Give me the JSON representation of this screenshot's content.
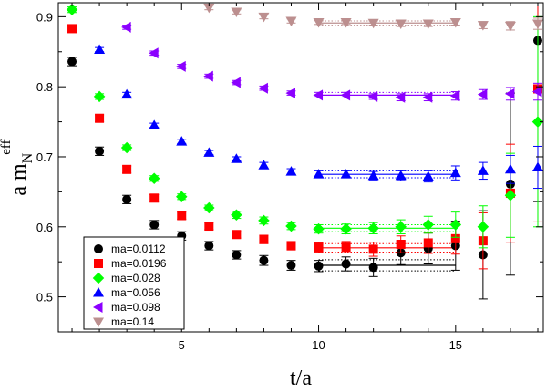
{
  "chart_data": {
    "type": "scatter",
    "xlabel": "t/a",
    "ylabel_main": "a m",
    "ylabel_sub": "N",
    "ylabel_sup": "eff",
    "xlim": [
      0.5,
      18.2
    ],
    "ylim": [
      0.45,
      0.92
    ],
    "xticks": [
      5,
      10,
      15
    ],
    "yticks": [
      0.5,
      0.6,
      0.7,
      0.8,
      0.9
    ],
    "xtick_labels": [
      "5",
      "10",
      "15"
    ],
    "ytick_labels": [
      "0.5",
      "0.6",
      "0.7",
      "0.8",
      "0.9"
    ],
    "legend_position": "bottom-left",
    "series": [
      {
        "name": "ma=0.0112",
        "marker": "circle",
        "color": "#000000",
        "points": [
          [
            1,
            0.836,
            0.006
          ],
          [
            2,
            0.708,
            0.006
          ],
          [
            3,
            0.639,
            0.006
          ],
          [
            4,
            0.603,
            0.006
          ],
          [
            5,
            0.587,
            0.006
          ],
          [
            6,
            0.573,
            0.006
          ],
          [
            7,
            0.56,
            0.006
          ],
          [
            8,
            0.552,
            0.007
          ],
          [
            9,
            0.545,
            0.007
          ],
          [
            10,
            0.544,
            0.008
          ],
          [
            11,
            0.547,
            0.01
          ],
          [
            12,
            0.542,
            0.013
          ],
          [
            13,
            0.563,
            0.017
          ],
          [
            14,
            0.569,
            0.022
          ],
          [
            15,
            0.573,
            0.035
          ],
          [
            16,
            0.56,
            0.063
          ],
          [
            17,
            0.661,
            0.13
          ],
          [
            18,
            0.866,
            0.23
          ]
        ],
        "fit": {
          "x": [
            10,
            15
          ],
          "value": 0.545,
          "error": 0.008
        }
      },
      {
        "name": "ma=0.0196",
        "marker": "square",
        "color": "#ff0000",
        "points": [
          [
            1,
            0.883,
            0.005
          ],
          [
            2,
            0.755,
            0.005
          ],
          [
            3,
            0.682,
            0.005
          ],
          [
            4,
            0.641,
            0.005
          ],
          [
            5,
            0.616,
            0.005
          ],
          [
            6,
            0.601,
            0.005
          ],
          [
            7,
            0.589,
            0.005
          ],
          [
            8,
            0.582,
            0.006
          ],
          [
            9,
            0.573,
            0.006
          ],
          [
            10,
            0.57,
            0.007
          ],
          [
            11,
            0.571,
            0.008
          ],
          [
            12,
            0.568,
            0.01
          ],
          [
            13,
            0.575,
            0.012
          ],
          [
            14,
            0.577,
            0.015
          ],
          [
            15,
            0.583,
            0.022
          ],
          [
            16,
            0.58,
            0.04
          ],
          [
            17,
            0.648,
            0.07
          ],
          [
            18,
            0.797,
            0.19
          ]
        ],
        "fit": {
          "x": [
            10,
            15
          ],
          "value": 0.57,
          "error": 0.006
        }
      },
      {
        "name": "ma=0.028",
        "marker": "diamond",
        "color": "#00ff00",
        "points": [
          [
            1,
            0.91,
            0.004
          ],
          [
            2,
            0.786,
            0.004
          ],
          [
            3,
            0.713,
            0.004
          ],
          [
            4,
            0.669,
            0.004
          ],
          [
            5,
            0.643,
            0.004
          ],
          [
            6,
            0.627,
            0.004
          ],
          [
            7,
            0.617,
            0.005
          ],
          [
            8,
            0.609,
            0.005
          ],
          [
            9,
            0.601,
            0.005
          ],
          [
            10,
            0.597,
            0.006
          ],
          [
            11,
            0.597,
            0.007
          ],
          [
            12,
            0.598,
            0.008
          ],
          [
            13,
            0.6,
            0.01
          ],
          [
            14,
            0.603,
            0.012
          ],
          [
            15,
            0.603,
            0.018
          ],
          [
            16,
            0.6,
            0.03
          ],
          [
            17,
            0.645,
            0.06
          ],
          [
            18,
            0.75,
            0.15
          ]
        ],
        "fit": {
          "x": [
            10,
            15
          ],
          "value": 0.598,
          "error": 0.005
        }
      },
      {
        "name": "ma=0.056",
        "marker": "triangle-up",
        "color": "#0000ff",
        "points": [
          [
            2,
            0.853,
            0.003
          ],
          [
            3,
            0.789,
            0.003
          ],
          [
            4,
            0.745,
            0.003
          ],
          [
            5,
            0.722,
            0.003
          ],
          [
            6,
            0.706,
            0.003
          ],
          [
            7,
            0.697,
            0.003
          ],
          [
            8,
            0.688,
            0.004
          ],
          [
            9,
            0.679,
            0.004
          ],
          [
            10,
            0.675,
            0.005
          ],
          [
            11,
            0.675,
            0.005
          ],
          [
            12,
            0.673,
            0.006
          ],
          [
            13,
            0.673,
            0.007
          ],
          [
            14,
            0.672,
            0.008
          ],
          [
            15,
            0.677,
            0.01
          ],
          [
            16,
            0.68,
            0.012
          ],
          [
            17,
            0.682,
            0.02
          ],
          [
            18,
            0.685,
            0.03
          ]
        ],
        "fit": {
          "x": [
            10,
            15
          ],
          "value": 0.675,
          "error": 0.005
        }
      },
      {
        "name": "ma=0.098",
        "marker": "triangle-left",
        "color": "#8b00ff",
        "points": [
          [
            3,
            0.885,
            0.003
          ],
          [
            4,
            0.848,
            0.003
          ],
          [
            5,
            0.829,
            0.003
          ],
          [
            6,
            0.815,
            0.003
          ],
          [
            7,
            0.806,
            0.003
          ],
          [
            8,
            0.798,
            0.003
          ],
          [
            9,
            0.791,
            0.003
          ],
          [
            10,
            0.788,
            0.004
          ],
          [
            11,
            0.788,
            0.004
          ],
          [
            12,
            0.786,
            0.004
          ],
          [
            13,
            0.785,
            0.005
          ],
          [
            14,
            0.785,
            0.005
          ],
          [
            15,
            0.787,
            0.006
          ],
          [
            16,
            0.789,
            0.007
          ],
          [
            17,
            0.79,
            0.009
          ],
          [
            18,
            0.793,
            0.012
          ]
        ],
        "fit": {
          "x": [
            10,
            15
          ],
          "value": 0.788,
          "error": 0.004
        }
      },
      {
        "name": "ma=0.14",
        "marker": "triangle-down",
        "color": "#bc8f8f",
        "points": [
          [
            6,
            0.913,
            0.003
          ],
          [
            7,
            0.907,
            0.003
          ],
          [
            8,
            0.9,
            0.003
          ],
          [
            9,
            0.894,
            0.003
          ],
          [
            10,
            0.892,
            0.003
          ],
          [
            11,
            0.892,
            0.003
          ],
          [
            12,
            0.891,
            0.003
          ],
          [
            13,
            0.89,
            0.004
          ],
          [
            14,
            0.89,
            0.004
          ],
          [
            15,
            0.892,
            0.004
          ],
          [
            16,
            0.888,
            0.005
          ],
          [
            17,
            0.887,
            0.006
          ],
          [
            18,
            0.89,
            0.008
          ]
        ],
        "fit": {
          "x": [
            10,
            15
          ],
          "value": 0.891,
          "error": 0.003
        }
      }
    ]
  }
}
